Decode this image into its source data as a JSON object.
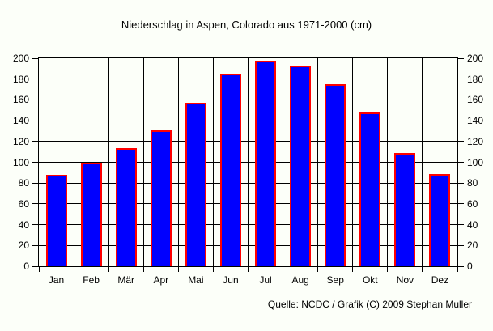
{
  "title": "Niederschlag in Aspen, Colorado aus 1971-2000 (cm)",
  "footer": "Quelle: NCDC / Grafik (C) 2009 Stephan Muller",
  "chart_data": {
    "type": "bar",
    "title": "Niederschlag in Aspen, Colorado aus 1971-2000 (cm)",
    "categories": [
      "Jan",
      "Feb",
      "Mär",
      "Apr",
      "Mai",
      "Jun",
      "Jul",
      "Aug",
      "Sep",
      "Okt",
      "Nov",
      "Dez"
    ],
    "values": [
      88,
      100,
      114,
      131,
      157,
      185,
      198,
      193,
      175,
      148,
      109,
      89
    ],
    "xlabel": "",
    "ylabel": "",
    "ylim": [
      0,
      200
    ],
    "yticks": [
      0,
      20,
      40,
      60,
      80,
      100,
      120,
      140,
      160,
      180,
      200
    ],
    "y_axis_sides": [
      "left",
      "right"
    ],
    "grid": true,
    "legend": false,
    "annotation": "Quelle: NCDC / Grafik (C) 2009 Stephan Muller",
    "colors": {
      "bar_fill": "#0000ff",
      "bar_border": "#ff0000",
      "grid": "#000000",
      "text": "#000000",
      "background": "#fcfff9"
    }
  }
}
